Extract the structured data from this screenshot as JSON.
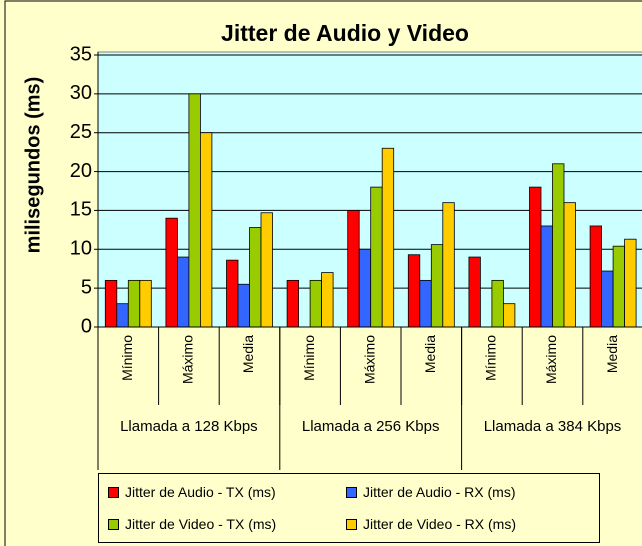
{
  "chart_data": {
    "type": "bar",
    "title": "Jitter de Audio y Video",
    "y_label": "milisegundos (ms)",
    "categories": [
      "Mínimo",
      "Máximo",
      "Media",
      "Mínimo",
      "Máximo",
      "Media",
      "Mínimo",
      "Máximo",
      "Media"
    ],
    "category_groups": [
      "Llamada a 128 Kbps",
      "Llamada a 256 Kbps",
      "Llamada a 384 Kbps"
    ],
    "series": [
      {
        "name": "Jitter de Audio - TX (ms)",
        "color": "#ff0000",
        "values": [
          6,
          14,
          8.6,
          6,
          15,
          9.3,
          9,
          18,
          13
        ]
      },
      {
        "name": "Jitter de Audio - RX (ms)",
        "color": "#3366ff",
        "values": [
          3,
          9,
          5.5,
          0,
          10,
          6,
          0,
          13,
          7.2
        ]
      },
      {
        "name": "Jitter de Video - TX (ms)",
        "color": "#99cc00",
        "values": [
          6,
          30,
          12.8,
          6,
          18,
          10.6,
          6,
          21,
          10.4
        ]
      },
      {
        "name": "Jitter de Video - RX (ms)",
        "color": "#ffcc00",
        "values": [
          6,
          25,
          14.7,
          7,
          23,
          16,
          3,
          16,
          11.3
        ]
      }
    ],
    "ylim": [
      0,
      35
    ],
    "yticks": [
      0,
      5,
      10,
      15,
      20,
      25,
      30,
      35
    ],
    "grid": true
  }
}
